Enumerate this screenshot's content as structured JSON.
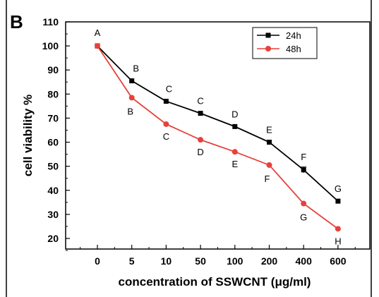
{
  "panel_label": "B",
  "chart_data": {
    "type": "line",
    "categories": [
      "0",
      "5",
      "10",
      "50",
      "100",
      "200",
      "400",
      "600"
    ],
    "xlabel": "concentration of SSWCNT (μg/ml)",
    "ylabel": "cell viability %",
    "ylim": [
      15,
      110
    ],
    "yticks": [
      20,
      30,
      40,
      50,
      60,
      70,
      80,
      90,
      100,
      110
    ],
    "grid": false,
    "legend_position": "top-right",
    "series": [
      {
        "name": "24h",
        "color": "#000000",
        "marker": "square",
        "values": [
          100,
          85.5,
          77,
          72,
          66.5,
          60,
          48.5,
          35.5
        ],
        "point_labels": [
          "A",
          "B",
          "C",
          "C",
          "D",
          "E",
          "F",
          "G"
        ],
        "error": [
          0,
          0,
          0,
          0,
          0,
          0,
          1.2,
          0
        ]
      },
      {
        "name": "48h",
        "color": "#e8403a",
        "marker": "circle",
        "values": [
          100,
          78.5,
          67.5,
          61,
          56,
          50.5,
          34.5,
          24
        ],
        "point_labels": [
          "A",
          "B",
          "C",
          "D",
          "E",
          "F",
          "G",
          "H"
        ],
        "error": [
          0,
          0,
          0,
          0,
          0,
          0,
          0,
          0
        ]
      }
    ]
  }
}
